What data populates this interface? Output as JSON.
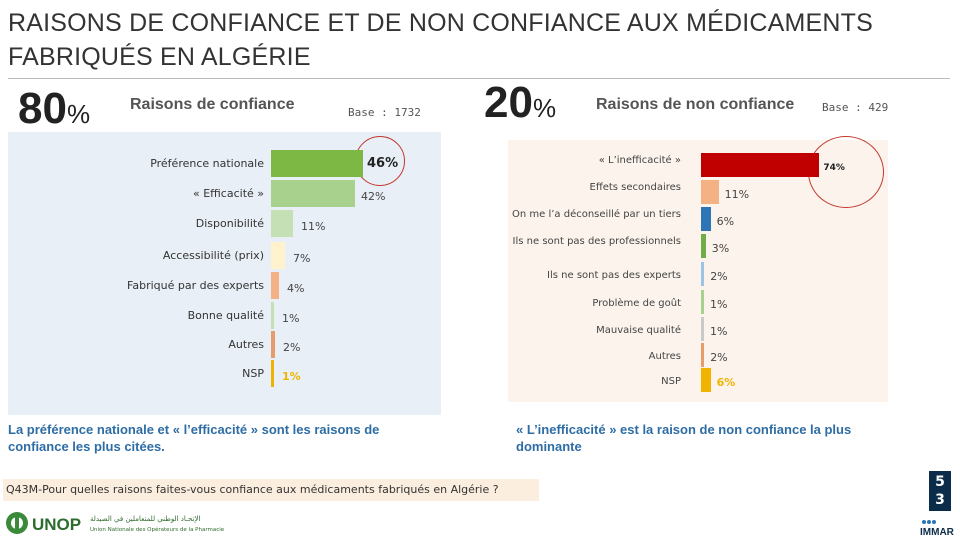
{
  "title": "RAISONS DE CONFIANCE ET DE NON CONFIANCE AUX MÉDICAMENTS FABRIQUÉS EN ALGÉRIE",
  "left_panel": {
    "big_value": "80",
    "big_symbol": "%",
    "heading": "Raisons de confiance",
    "base": "Base : 1732",
    "summary": "La préférence nationale et « l’efficacité » sont les raisons de confiance les plus citées."
  },
  "right_panel": {
    "big_value": "20",
    "big_symbol": "%",
    "heading": "Raisons de non confiance",
    "base": "Base : 429",
    "summary": "« L’inefficacité » est la raison de non confiance la plus dominante"
  },
  "question": "Q43M-Pour quelles raisons faites-vous confiance aux médicaments fabriqués en Algérie ?",
  "page_number": [
    "5",
    "3"
  ],
  "logos": {
    "left_brand": "UNOP",
    "left_arabic": "الإتحـاد الوطني للمتعاملين في الصيدلة",
    "left_sub": "Union Nationale des Opérateurs de la Pharmacie",
    "right_brand": "IMMAR"
  },
  "chart_data": [
    {
      "type": "bar",
      "orientation": "horizontal",
      "title": "Raisons de confiance",
      "categories": [
        "Préférence nationale",
        "« Efficacité »",
        "Disponibilité",
        "Accessibilité (prix)",
        "Fabriqué par des experts",
        "Bonne qualité",
        "Autres",
        "NSP"
      ],
      "values": [
        46,
        42,
        11,
        7,
        4,
        1,
        2,
        1
      ],
      "value_labels": [
        "46%",
        "42%",
        "11%",
        "7%",
        "4%",
        "1%",
        "2%",
        "1%"
      ],
      "colors": [
        "#7db844",
        "#a9d18e",
        "#c5e0b4",
        "#fff2cc",
        "#f4b183",
        "#c5e0b4",
        "#e69c6b",
        "#f0b400"
      ],
      "xlim": [
        0,
        50
      ]
    },
    {
      "type": "bar",
      "orientation": "horizontal",
      "title": "Raisons de non confiance",
      "categories": [
        "« L’inefficacité »",
        "Effets secondaires",
        "On me l’a déconseillé par un tiers",
        "Ils ne sont pas des professionnels",
        "Ils ne sont pas des experts",
        "Problème de goût",
        "Mauvaise qualité",
        "Autres",
        "NSP"
      ],
      "values": [
        74,
        11,
        6,
        3,
        2,
        1,
        1,
        2,
        6
      ],
      "value_labels": [
        "74%",
        "11%",
        "6%",
        "3%",
        "2%",
        "1%",
        "1%",
        "2%",
        "6%"
      ],
      "colors": [
        "#c00000",
        "#f4b183",
        "#2e75b6",
        "#70ad47",
        "#9dc3e6",
        "#a9d18e",
        "#c9c9c9",
        "#e69c6b",
        "#f0b400"
      ],
      "xlim": [
        0,
        80
      ]
    }
  ]
}
